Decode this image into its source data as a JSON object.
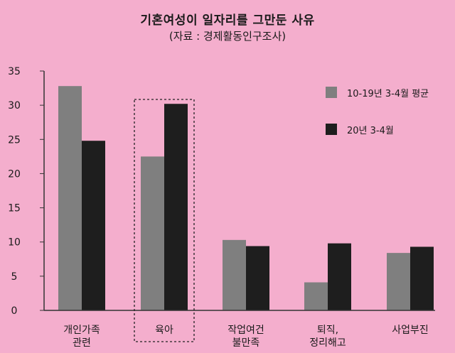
{
  "title": "기혼여성이 일자리를 그만둔 사유",
  "subtitle": "(자료 : 경제활동인구조사)",
  "colors": {
    "background": "#f4aecd",
    "series1": "#7f7f7f",
    "series2": "#1e1e1e",
    "axis": "#333333"
  },
  "chart_data": {
    "type": "bar",
    "categories": [
      [
        "개인가족",
        "관련"
      ],
      [
        "육아"
      ],
      [
        "작업여건",
        "불만족"
      ],
      [
        "퇴직,",
        "정리해고"
      ],
      [
        "사업부진"
      ]
    ],
    "series": [
      {
        "name": "10-19년 3-4월 평균",
        "values": [
          32.8,
          22.5,
          10.3,
          4.1,
          8.4
        ]
      },
      {
        "name": "20년 3-4월",
        "values": [
          24.8,
          30.2,
          9.4,
          9.8,
          9.3
        ]
      }
    ],
    "yticks": [
      0,
      5,
      10,
      15,
      20,
      25,
      30,
      35
    ],
    "ylim": [
      0,
      35
    ],
    "highlight_category_index": 1,
    "legend_position": "top-right",
    "grid": false
  }
}
